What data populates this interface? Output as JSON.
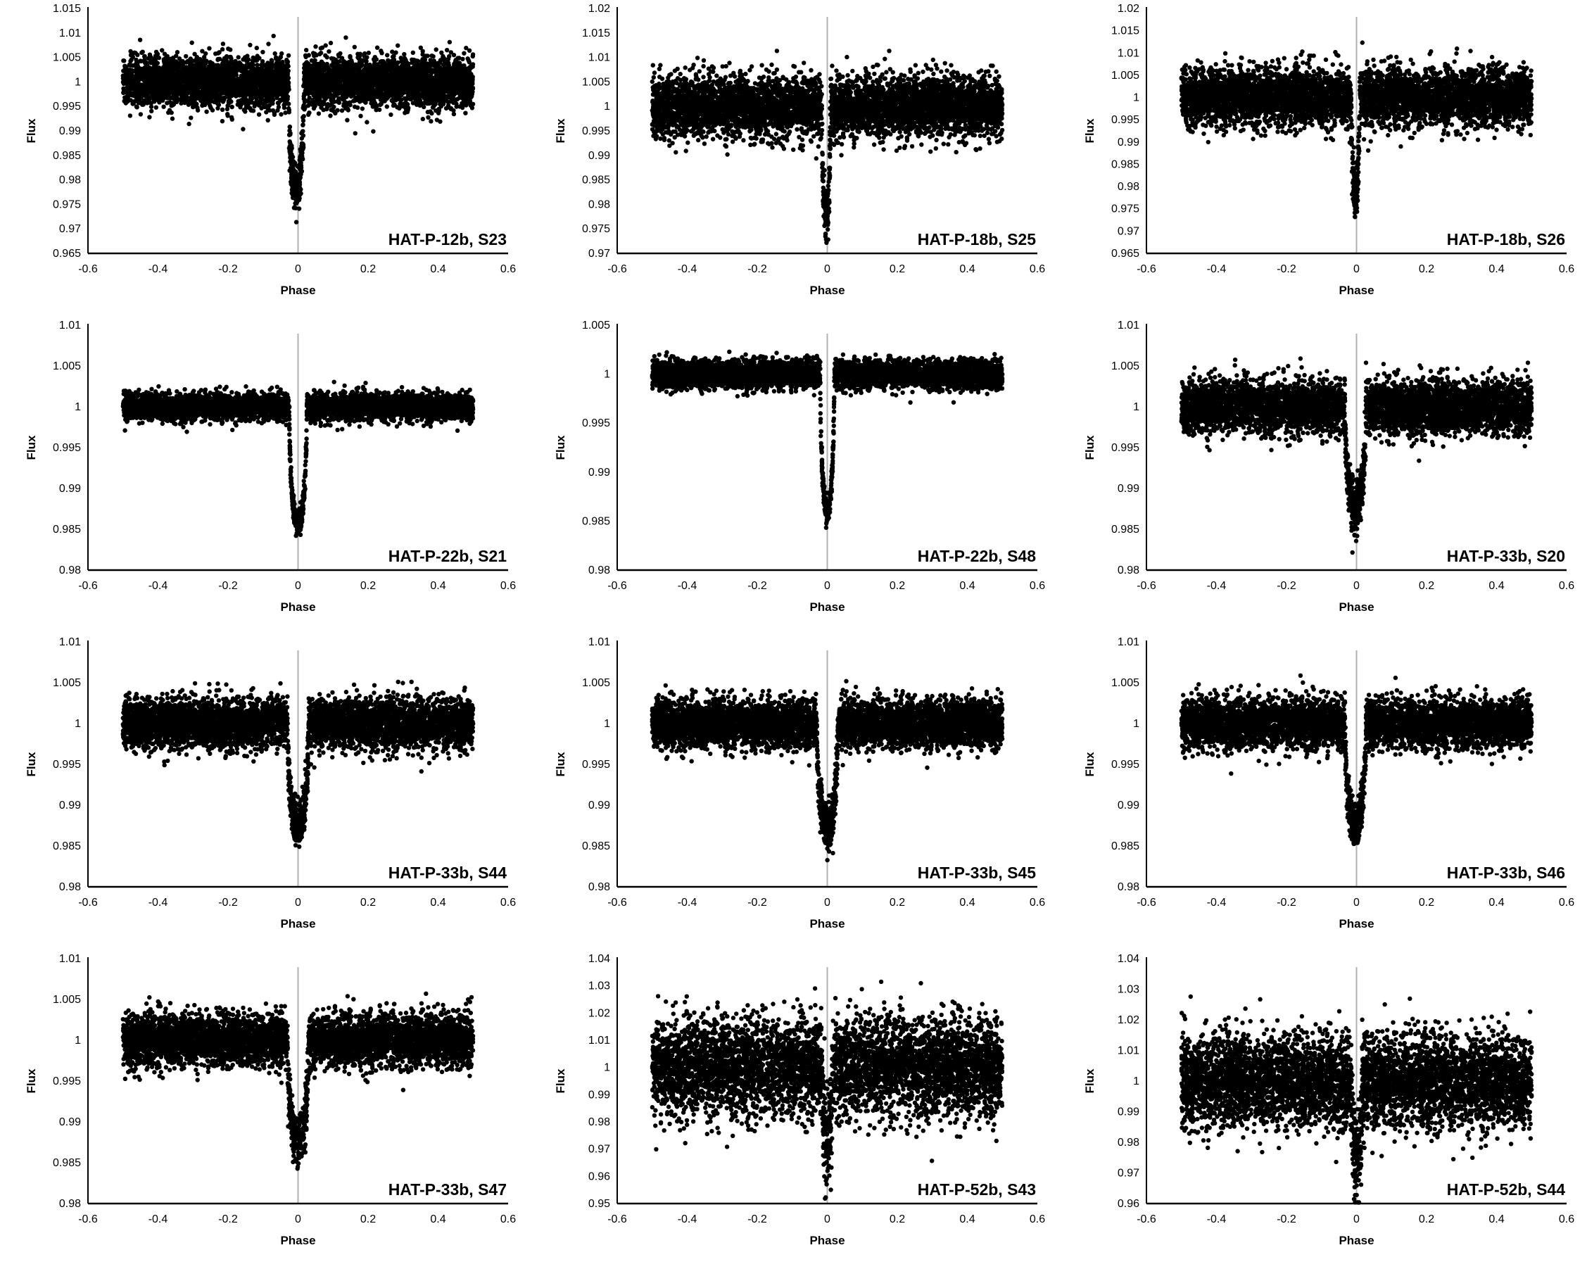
{
  "chart_data": [
    {
      "type": "scatter",
      "title": "HAT-P-12b, S23",
      "xlabel": "Phase",
      "ylabel": "Flux",
      "xlim": [
        -0.6,
        0.6
      ],
      "ylim": [
        0.965,
        1.015
      ],
      "xticks": [
        "-0.6",
        "-0.4",
        "-0.2",
        "0",
        "0.2",
        "0.4",
        "0.6"
      ],
      "yticks": [
        "0.965",
        "0.97",
        "0.975",
        "0.98",
        "0.985",
        "0.99",
        "0.995",
        "1",
        "1.005",
        "1.01",
        "1.015"
      ],
      "phase_range": [
        -0.5,
        0.5
      ],
      "baseline": 1.0,
      "scatter": 0.0025,
      "transit_depth": 0.022,
      "transit_half_width": 0.022,
      "transit_center": -0.005,
      "marker_color": "#000000",
      "vline_color": "#b0b0b0"
    },
    {
      "type": "scatter",
      "title": "HAT-P-18b, S25",
      "xlabel": "Phase",
      "ylabel": "Flux",
      "xlim": [
        -0.6,
        0.6
      ],
      "ylim": [
        0.97,
        1.02
      ],
      "xticks": [
        "-0.6",
        "-0.4",
        "-0.2",
        "0",
        "0.2",
        "0.4",
        "0.6"
      ],
      "yticks": [
        "0.97",
        "0.975",
        "0.98",
        "0.985",
        "0.99",
        "0.995",
        "1",
        "1.005",
        "1.01",
        "1.015",
        "1.02"
      ],
      "phase_range": [
        -0.5,
        0.5
      ],
      "baseline": 1.0,
      "scatter": 0.003,
      "transit_depth": 0.022,
      "transit_half_width": 0.012,
      "transit_center": -0.003,
      "marker_color": "#000000",
      "vline_color": "#b0b0b0"
    },
    {
      "type": "scatter",
      "title": "HAT-P-18b, S26",
      "xlabel": "Phase",
      "ylabel": "Flux",
      "xlim": [
        -0.6,
        0.6
      ],
      "ylim": [
        0.965,
        1.02
      ],
      "xticks": [
        "-0.6",
        "-0.4",
        "-0.2",
        "0",
        "0.2",
        "0.4",
        "0.6"
      ],
      "yticks": [
        "0.965",
        "0.97",
        "0.975",
        "0.98",
        "0.985",
        "0.99",
        "0.995",
        "1",
        "1.005",
        "1.01",
        "1.015",
        "1.02"
      ],
      "phase_range": [
        -0.5,
        0.5
      ],
      "baseline": 1.0,
      "scatter": 0.0032,
      "transit_depth": 0.022,
      "transit_half_width": 0.012,
      "transit_center": -0.003,
      "marker_color": "#000000",
      "vline_color": "#b0b0b0"
    },
    {
      "type": "scatter",
      "title": "HAT-P-22b, S21",
      "xlabel": "Phase",
      "ylabel": "Flux",
      "xlim": [
        -0.6,
        0.6
      ],
      "ylim": [
        0.98,
        1.01
      ],
      "xticks": [
        "-0.6",
        "-0.4",
        "-0.2",
        "0",
        "0.2",
        "0.4",
        "0.6"
      ],
      "yticks": [
        "0.98",
        "0.985",
        "0.99",
        "0.995",
        "1",
        "1.005",
        "1.01"
      ],
      "phase_range": [
        -0.5,
        0.5
      ],
      "baseline": 1.0,
      "scatter": 0.0008,
      "transit_depth": 0.0145,
      "transit_half_width": 0.025,
      "transit_center": 0.0,
      "marker_color": "#000000",
      "vline_color": "#b0b0b0"
    },
    {
      "type": "scatter",
      "title": "HAT-P-22b, S48",
      "xlabel": "Phase",
      "ylabel": "Flux",
      "xlim": [
        -0.6,
        0.6
      ],
      "ylim": [
        0.98,
        1.005
      ],
      "xticks": [
        "-0.6",
        "-0.4",
        "-0.2",
        "0",
        "0.2",
        "0.4",
        "0.6"
      ],
      "yticks": [
        "0.98",
        "0.985",
        "0.99",
        "0.995",
        "1",
        "1.005"
      ],
      "phase_range": [
        -0.5,
        0.5
      ],
      "baseline": 1.0,
      "scatter": 0.0007,
      "transit_depth": 0.014,
      "transit_half_width": 0.02,
      "transit_center": 0.0,
      "marker_color": "#000000",
      "vline_color": "#b0b0b0"
    },
    {
      "type": "scatter",
      "title": "HAT-P-33b, S20",
      "xlabel": "Phase",
      "ylabel": "Flux",
      "xlim": [
        -0.6,
        0.6
      ],
      "ylim": [
        0.98,
        1.01
      ],
      "xticks": [
        "-0.6",
        "-0.4",
        "-0.2",
        "0",
        "0.2",
        "0.4",
        "0.6"
      ],
      "yticks": [
        "0.98",
        "0.985",
        "0.99",
        "0.995",
        "1",
        "1.005",
        "1.01"
      ],
      "phase_range": [
        -0.5,
        0.5
      ],
      "baseline": 1.0,
      "scatter": 0.0016,
      "transit_depth": 0.0125,
      "transit_half_width": 0.03,
      "transit_center": -0.003,
      "marker_color": "#000000",
      "vline_color": "#b0b0b0"
    },
    {
      "type": "scatter",
      "title": "HAT-P-33b, S44",
      "xlabel": "Phase",
      "ylabel": "Flux",
      "xlim": [
        -0.6,
        0.6
      ],
      "ylim": [
        0.98,
        1.01
      ],
      "xticks": [
        "-0.6",
        "-0.4",
        "-0.2",
        "0",
        "0.2",
        "0.4",
        "0.6"
      ],
      "yticks": [
        "0.98",
        "0.985",
        "0.99",
        "0.995",
        "1",
        "1.005",
        "1.01"
      ],
      "phase_range": [
        -0.5,
        0.5
      ],
      "baseline": 1.0,
      "scatter": 0.0015,
      "transit_depth": 0.0125,
      "transit_half_width": 0.03,
      "transit_center": 0.0,
      "marker_color": "#000000",
      "vline_color": "#b0b0b0"
    },
    {
      "type": "scatter",
      "title": "HAT-P-33b, S45",
      "xlabel": "Phase",
      "ylabel": "Flux",
      "xlim": [
        -0.6,
        0.6
      ],
      "ylim": [
        0.98,
        1.01
      ],
      "xticks": [
        "-0.6",
        "-0.4",
        "-0.2",
        "0",
        "0.2",
        "0.4",
        "0.6"
      ],
      "yticks": [
        "0.98",
        "0.985",
        "0.99",
        "0.995",
        "1",
        "1.005",
        "1.01"
      ],
      "phase_range": [
        -0.5,
        0.5
      ],
      "baseline": 1.0,
      "scatter": 0.0015,
      "transit_depth": 0.0125,
      "transit_half_width": 0.03,
      "transit_center": 0.0,
      "marker_color": "#000000",
      "vline_color": "#b0b0b0"
    },
    {
      "type": "scatter",
      "title": "HAT-P-33b, S46",
      "xlabel": "Phase",
      "ylabel": "Flux",
      "xlim": [
        -0.6,
        0.6
      ],
      "ylim": [
        0.98,
        1.01
      ],
      "xticks": [
        "-0.6",
        "-0.4",
        "-0.2",
        "0",
        "0.2",
        "0.4",
        "0.6"
      ],
      "yticks": [
        "0.98",
        "0.985",
        "0.99",
        "0.995",
        "1",
        "1.005",
        "1.01"
      ],
      "phase_range": [
        -0.5,
        0.5
      ],
      "baseline": 1.0,
      "scatter": 0.0015,
      "transit_depth": 0.0125,
      "transit_half_width": 0.03,
      "transit_center": -0.003,
      "marker_color": "#000000",
      "vline_color": "#b0b0b0"
    },
    {
      "type": "scatter",
      "title": "HAT-P-33b, S47",
      "xlabel": "Phase",
      "ylabel": "Flux",
      "xlim": [
        -0.6,
        0.6
      ],
      "ylim": [
        0.98,
        1.01
      ],
      "xticks": [
        "-0.6",
        "-0.4",
        "-0.2",
        "0",
        "0.2",
        "0.4",
        "0.6"
      ],
      "yticks": [
        "0.98",
        "0.985",
        "0.99",
        "0.995",
        "1",
        "1.005",
        "1.01"
      ],
      "phase_range": [
        -0.5,
        0.5
      ],
      "baseline": 1.0,
      "scatter": 0.0016,
      "transit_depth": 0.0125,
      "transit_half_width": 0.03,
      "transit_center": 0.0,
      "marker_color": "#000000",
      "vline_color": "#b0b0b0"
    },
    {
      "type": "scatter",
      "title": "HAT-P-52b, S43",
      "xlabel": "Phase",
      "ylabel": "Flux",
      "xlim": [
        -0.6,
        0.6
      ],
      "ylim": [
        0.95,
        1.04
      ],
      "xticks": [
        "-0.6",
        "-0.4",
        "-0.2",
        "0",
        "0.2",
        "0.4",
        "0.6"
      ],
      "yticks": [
        "0.95",
        "0.96",
        "0.97",
        "0.98",
        "0.99",
        "1",
        "1.01",
        "1.02",
        "1.03",
        "1.04"
      ],
      "phase_range": [
        -0.5,
        0.5
      ],
      "baseline": 1.0,
      "scatter": 0.009,
      "transit_depth": 0.025,
      "transit_half_width": 0.015,
      "transit_center": 0.0,
      "marker_color": "#000000",
      "vline_color": "#b0b0b0"
    },
    {
      "type": "scatter",
      "title": "HAT-P-52b, S44",
      "xlabel": "Phase",
      "ylabel": "Flux",
      "xlim": [
        -0.6,
        0.6
      ],
      "ylim": [
        0.96,
        1.04
      ],
      "xticks": [
        "-0.6",
        "-0.4",
        "-0.2",
        "0",
        "0.2",
        "0.4",
        "0.6"
      ],
      "yticks": [
        "0.96",
        "0.97",
        "0.98",
        "0.99",
        "1",
        "1.01",
        "1.02",
        "1.03",
        "1.04"
      ],
      "phase_range": [
        -0.5,
        0.5
      ],
      "baseline": 1.0,
      "scatter": 0.0075,
      "transit_depth": 0.025,
      "transit_half_width": 0.015,
      "transit_center": 0.0,
      "marker_color": "#000000",
      "vline_color": "#b0b0b0"
    }
  ]
}
